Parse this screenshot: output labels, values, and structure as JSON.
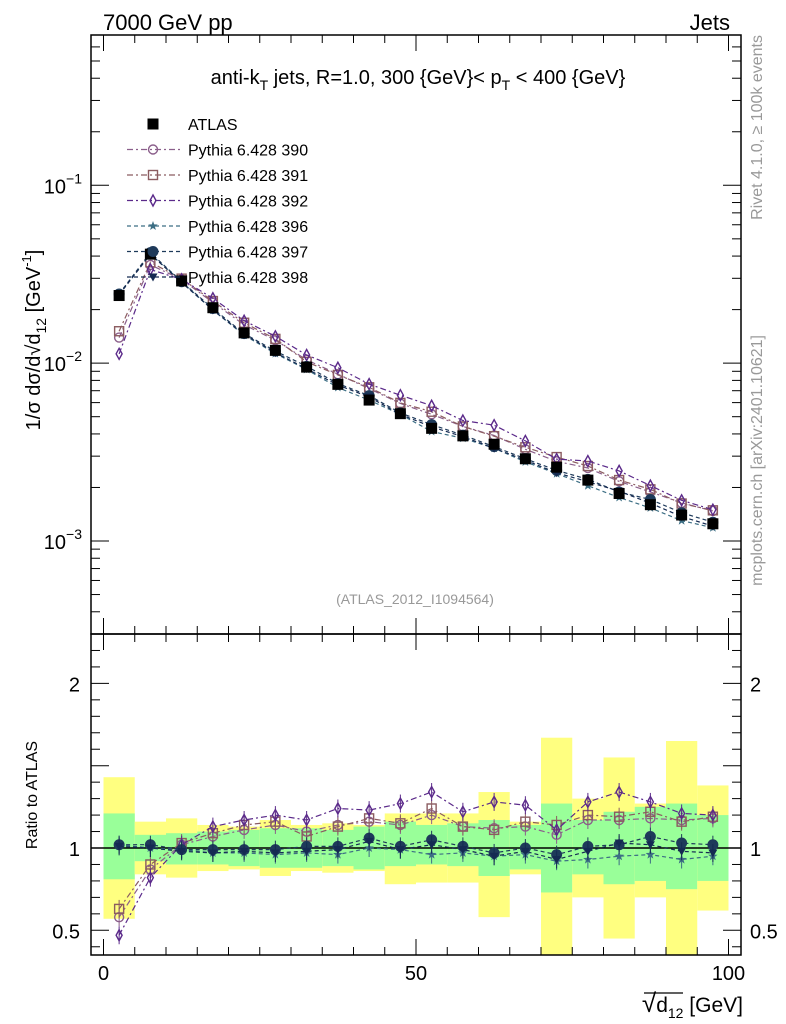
{
  "header": {
    "left": "7000 GeV pp",
    "right": "Jets"
  },
  "side_labels": {
    "rivet": "Rivet 4.1.0, ≥ 100k events",
    "mcplots": "mcplots.cern.ch [arXiv:2401.10621]"
  },
  "chart_data": {
    "type": "scatter",
    "title_parts": {
      "a": "anti-k",
      "a_sub": "T",
      "b": " jets, R=1.0, 300 {GeV}< p",
      "b_sub": "T",
      "c": " < 400 {GeV}"
    },
    "watermark": "(ATLAS_2012_I1094564)",
    "xlabel": {
      "root": "√",
      "main": "d",
      "sub": "12",
      "unit": " [GeV]"
    },
    "ylabel_main": {
      "a": "1/σ dσ/d√",
      "b": "d",
      "b_sub": "12",
      "c": " [GeV",
      "c_sup": "-1",
      "d": "]"
    },
    "ylabel_ratio": "Ratio to ATLAS",
    "xlim": [
      -2,
      102
    ],
    "ylim_main": [
      0.0003,
      0.7
    ],
    "ylim_ratio": [
      0.35,
      2.3
    ],
    "x_ticks": [
      {
        "v": 0,
        "label": "0"
      },
      {
        "v": 50,
        "label": "50"
      },
      {
        "v": 100,
        "label": "100"
      }
    ],
    "y_ticks_main": [
      {
        "v": 0.1,
        "base": "10",
        "exp": "−1"
      },
      {
        "v": 0.01,
        "base": "10",
        "exp": "−2"
      },
      {
        "v": 0.001,
        "base": "10",
        "exp": "−3"
      }
    ],
    "y_ticks_ratio": [
      {
        "v": 0.5,
        "label": "0.5"
      },
      {
        "v": 1,
        "label": "1"
      },
      {
        "v": 2,
        "label": "2"
      }
    ],
    "x": [
      2.5,
      7.5,
      12.5,
      17.5,
      22.5,
      27.5,
      32.5,
      37.5,
      42.5,
      47.5,
      52.5,
      57.5,
      62.5,
      67.5,
      72.5,
      77.5,
      82.5,
      87.5,
      92.5,
      97.5
    ],
    "bin_edges": [
      0,
      5,
      10,
      15,
      20,
      25,
      30,
      35,
      40,
      45,
      50,
      55,
      60,
      65,
      70,
      75,
      80,
      85,
      90,
      95,
      100
    ],
    "data": {
      "name": "ATLAS",
      "values": [
        0.024,
        0.041,
        0.029,
        0.0205,
        0.0148,
        0.0118,
        0.0095,
        0.0076,
        0.0062,
        0.0052,
        0.0043,
        0.0039,
        0.0035,
        0.0029,
        0.0026,
        0.0022,
        0.00185,
        0.0016,
        0.0014,
        0.00125
      ],
      "band_green": [
        [
          0.81,
          1.21
        ],
        [
          0.92,
          1.08
        ],
        [
          0.9,
          1.09
        ],
        [
          0.9,
          1.1
        ],
        [
          0.89,
          1.11
        ],
        [
          0.88,
          1.12
        ],
        [
          0.88,
          1.12
        ],
        [
          0.89,
          1.11
        ],
        [
          0.87,
          1.13
        ],
        [
          0.89,
          1.16
        ],
        [
          0.9,
          1.14
        ],
        [
          0.89,
          1.15
        ],
        [
          0.83,
          1.17
        ],
        [
          0.87,
          1.14
        ],
        [
          0.73,
          1.27
        ],
        [
          0.84,
          1.17
        ],
        [
          0.78,
          1.22
        ],
        [
          0.8,
          1.25
        ],
        [
          0.75,
          1.27
        ],
        [
          0.8,
          1.2
        ]
      ],
      "band_yellow": [
        [
          0.57,
          1.43
        ],
        [
          0.84,
          1.16
        ],
        [
          0.82,
          1.18
        ],
        [
          0.86,
          1.14
        ],
        [
          0.87,
          1.13
        ],
        [
          0.83,
          1.17
        ],
        [
          0.86,
          1.14
        ],
        [
          0.85,
          1.15
        ],
        [
          0.86,
          1.14
        ],
        [
          0.78,
          1.21
        ],
        [
          0.79,
          1.21
        ],
        [
          0.79,
          1.21
        ],
        [
          0.58,
          1.34
        ],
        [
          0.84,
          1.16
        ],
        [
          0.35,
          1.67
        ],
        [
          0.7,
          1.3
        ],
        [
          0.45,
          1.55
        ],
        [
          0.7,
          1.27
        ],
        [
          0.35,
          1.65
        ],
        [
          0.62,
          1.38
        ]
      ]
    },
    "series": [
      {
        "name": "Pythia 6.428 390",
        "marker": "circle",
        "color": "#8b5f8b",
        "dash": "6,3,2,3",
        "ratio": [
          0.58,
          0.87,
          1.02,
          1.07,
          1.11,
          1.14,
          1.1,
          1.14,
          1.16,
          1.14,
          1.2,
          1.13,
          1.12,
          1.13,
          1.08,
          1.17,
          1.17,
          1.18,
          1.17,
          1.18
        ]
      },
      {
        "name": "Pythia 6.428 391",
        "marker": "square",
        "color": "#8b5c60",
        "dash": "6,3,2,3",
        "ratio": [
          0.63,
          0.9,
          1.03,
          1.09,
          1.14,
          1.16,
          1.07,
          1.13,
          1.18,
          1.15,
          1.24,
          1.13,
          1.11,
          1.16,
          1.14,
          1.2,
          1.19,
          1.22,
          1.16,
          1.19
        ]
      },
      {
        "name": "Pythia 6.428 392",
        "marker": "diamond",
        "color": "#5b2a8a",
        "dash": "6,3,2,3",
        "ratio": [
          0.47,
          0.82,
          1.02,
          1.13,
          1.17,
          1.2,
          1.17,
          1.24,
          1.23,
          1.27,
          1.34,
          1.22,
          1.28,
          1.26,
          1.11,
          1.28,
          1.34,
          1.28,
          1.21,
          1.2
        ]
      },
      {
        "name": "Pythia 6.428 396",
        "marker": "star",
        "color": "#3c6e84",
        "dash": "4,3",
        "ratio": [
          1.02,
          1.0,
          0.99,
          0.97,
          0.97,
          0.96,
          0.97,
          0.96,
          1.0,
          0.99,
          0.96,
          0.97,
          0.95,
          0.96,
          0.92,
          0.93,
          0.95,
          0.96,
          0.93,
          0.95
        ]
      },
      {
        "name": "Pythia 6.428 397",
        "marker": "circle-filled",
        "color": "#1e3a5a",
        "dash": "4,3",
        "ratio": [
          1.02,
          1.02,
          0.99,
          0.99,
          0.99,
          0.99,
          1.01,
          1.01,
          1.06,
          1.01,
          1.05,
          1.01,
          0.97,
          1.0,
          0.96,
          1.01,
          1.02,
          1.07,
          1.03,
          1.02
        ]
      },
      {
        "name": "Pythia 6.428 398",
        "marker": "triangle-down",
        "color": "#152a52",
        "dash": "4,3",
        "ratio": [
          1.01,
          1.0,
          0.98,
          0.97,
          0.98,
          0.97,
          0.98,
          0.99,
          1.04,
          0.99,
          1.02,
          0.99,
          0.95,
          0.98,
          0.93,
          0.98,
          1.03,
          1.02,
          0.98,
          0.97
        ]
      }
    ]
  }
}
